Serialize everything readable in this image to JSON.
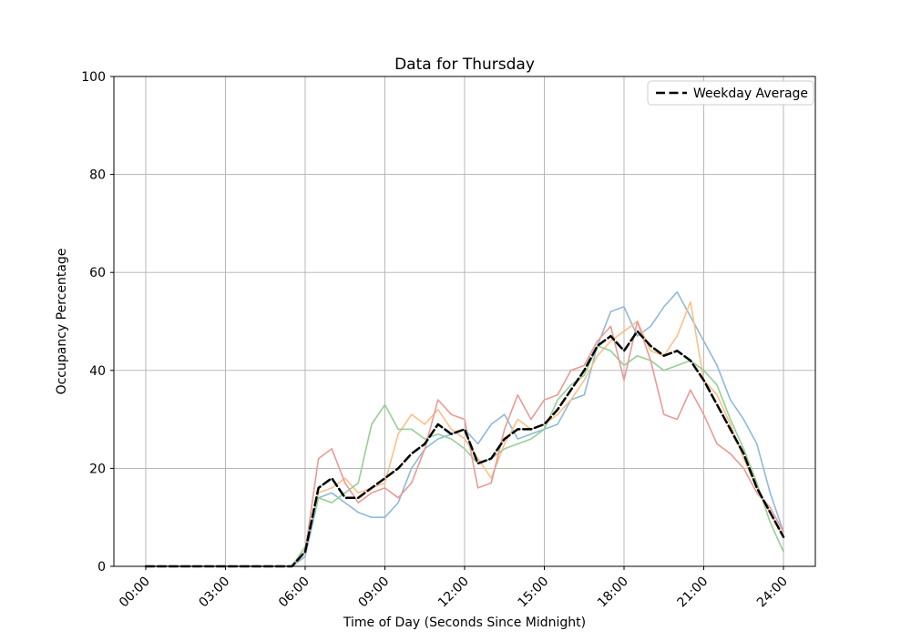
{
  "title": "Data for Thursday",
  "chart_data": {
    "type": "line",
    "title": "Data for Thursday",
    "xlabel": "Time of Day (Seconds Since Midnight)",
    "ylabel": "Occupancy Percentage",
    "xlim": [
      0,
      86400
    ],
    "ylim": [
      0,
      100
    ],
    "x_step_seconds": 1800,
    "x_ticks_seconds": [
      0,
      10800,
      21600,
      32400,
      43200,
      54000,
      64800,
      75600,
      86400
    ],
    "x_tick_labels": [
      "00:00",
      "03:00",
      "06:00",
      "09:00",
      "12:00",
      "15:00",
      "18:00",
      "21:00",
      "24:00"
    ],
    "y_ticks": [
      0,
      20,
      40,
      60,
      80,
      100
    ],
    "grid": true,
    "grid_color": "#b0b0b0",
    "spine_color": "#000000",
    "legend": {
      "position": "upper right",
      "entries": [
        {
          "label": "Weekday Average",
          "color": "#000000",
          "style": "dashed"
        }
      ]
    },
    "series": [
      {
        "name": "series-1",
        "color": "#8ebad9",
        "style": "solid",
        "width": 1.6,
        "values": [
          0,
          0,
          0,
          0,
          0,
          0,
          0,
          0,
          0,
          0,
          0,
          0,
          2,
          14,
          15,
          13,
          11,
          10,
          10,
          13,
          20,
          24,
          26,
          27,
          28,
          25,
          29,
          31,
          26,
          27,
          28,
          29,
          34,
          35,
          45,
          52,
          53,
          47,
          49,
          53,
          56,
          51,
          46,
          41,
          34,
          30,
          25,
          15,
          7
        ]
      },
      {
        "name": "series-2",
        "color": "#ffbf86",
        "style": "solid",
        "width": 1.6,
        "values": [
          0,
          0,
          0,
          0,
          0,
          0,
          0,
          0,
          0,
          0,
          0,
          0,
          3,
          15,
          16,
          18,
          15,
          16,
          17,
          27,
          31,
          29,
          32,
          28,
          26,
          22,
          18,
          25,
          30,
          28,
          29,
          31,
          34,
          38,
          43,
          46,
          48,
          50,
          44,
          43,
          47,
          54,
          38,
          35,
          29,
          22,
          16,
          11,
          6
        ]
      },
      {
        "name": "series-3",
        "color": "#95cf95",
        "style": "solid",
        "width": 1.6,
        "values": [
          0,
          0,
          0,
          0,
          0,
          0,
          0,
          0,
          0,
          0,
          0,
          0,
          4,
          14,
          13,
          15,
          17,
          29,
          33,
          28,
          28,
          26,
          27,
          26,
          24,
          21,
          22,
          24,
          25,
          26,
          28,
          34,
          37,
          39,
          45,
          44,
          41,
          43,
          42,
          40,
          41,
          42,
          40,
          37,
          30,
          24,
          17,
          9,
          3
        ]
      },
      {
        "name": "series-4",
        "color": "#ea9a96",
        "style": "solid",
        "width": 1.6,
        "values": [
          0,
          0,
          0,
          0,
          0,
          0,
          0,
          0,
          0,
          0,
          0,
          0,
          3,
          22,
          24,
          17,
          13,
          15,
          16,
          14,
          17,
          24,
          34,
          31,
          30,
          16,
          17,
          28,
          35,
          30,
          34,
          35,
          40,
          41,
          46,
          49,
          38,
          50,
          42,
          31,
          30,
          36,
          31,
          25,
          23,
          20,
          15,
          12,
          7
        ]
      },
      {
        "name": "Weekday Average",
        "color": "#000000",
        "style": "dashed",
        "width": 2.5,
        "values": [
          0,
          0,
          0,
          0,
          0,
          0,
          0,
          0,
          0,
          0,
          0,
          0,
          3,
          16,
          18,
          14,
          14,
          16,
          18,
          20,
          23,
          25,
          29,
          27,
          28,
          21,
          22,
          26,
          28,
          28,
          29,
          32,
          36,
          40,
          45,
          47,
          44,
          48,
          45,
          43,
          44,
          42,
          38,
          33,
          28,
          23,
          16,
          11,
          6
        ]
      }
    ]
  }
}
